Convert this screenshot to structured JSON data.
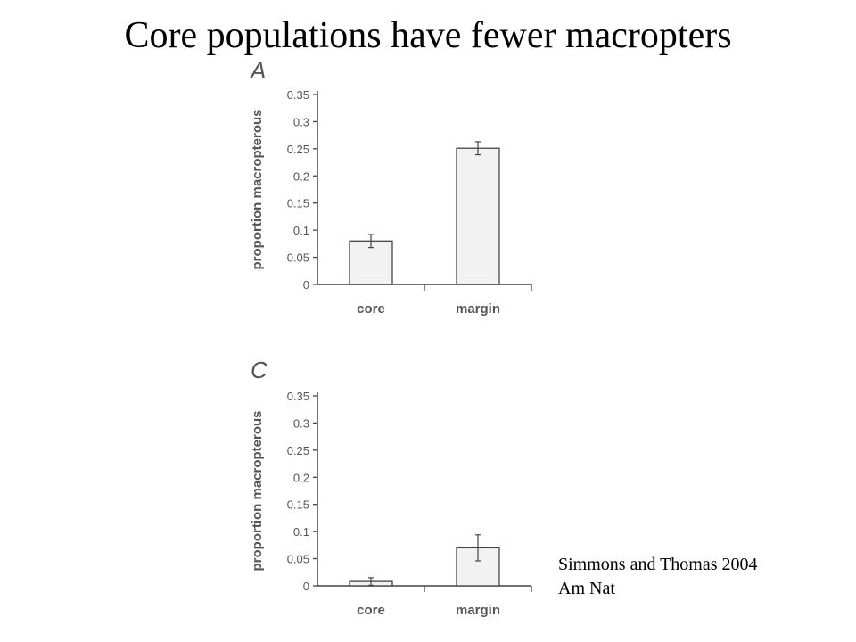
{
  "slide": {
    "title": "Core populations have fewer macropters",
    "citation_line1": "Simmons and Thomas 2004",
    "citation_line2": "Am Nat"
  },
  "colors": {
    "bar_fill": "#f2f2f2",
    "axis": "#444444",
    "tick_text": "#555555"
  },
  "chart_data": [
    {
      "type": "bar",
      "panel": "A",
      "categories": [
        "core",
        "margin"
      ],
      "values": [
        0.08,
        0.251
      ],
      "errors": [
        0.012,
        0.012
      ],
      "ylabel": "proportion macropterous",
      "xlabel": "",
      "ylim": [
        0,
        0.35
      ],
      "yticks": [
        "0",
        "0.05",
        "0.1",
        "0.15",
        "0.2",
        "0.25",
        "0.3",
        "0.35"
      ],
      "grid": false
    },
    {
      "type": "bar",
      "panel": "C",
      "categories": [
        "core",
        "margin"
      ],
      "values": [
        0.008,
        0.07
      ],
      "errors": [
        0.007,
        0.024
      ],
      "ylabel": "proportion macropterous",
      "xlabel": "",
      "ylim": [
        0,
        0.35
      ],
      "yticks": [
        "0",
        "0.05",
        "0.1",
        "0.15",
        "0.2",
        "0.25",
        "0.3",
        "0.35"
      ],
      "grid": false
    }
  ]
}
